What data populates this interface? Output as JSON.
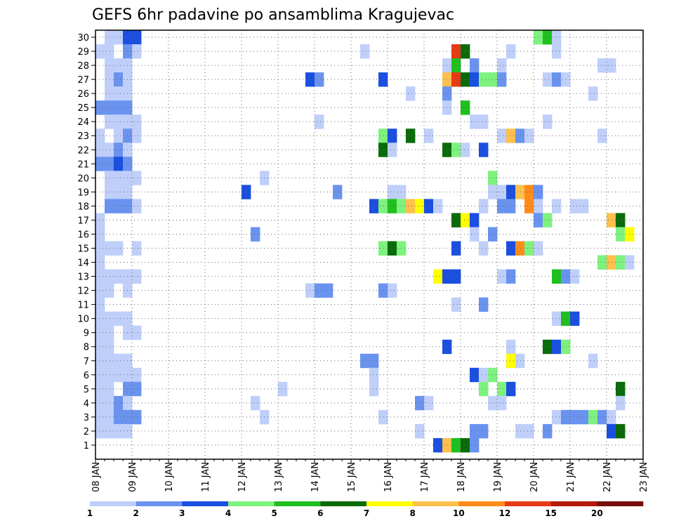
{
  "chart_data": {
    "type": "heatmap",
    "title": "GEFS 6hr padavine po ansamblima Kragujevac",
    "xlabel": "",
    "ylabel": "",
    "x_ticks": [
      "08 JAN",
      "09 JAN",
      "10 JAN",
      "11 JAN",
      "12 JAN",
      "13 JAN",
      "14 JAN",
      "15 JAN",
      "16 JAN",
      "17 JAN",
      "18 JAN",
      "19 JAN",
      "20 JAN",
      "21 JAN",
      "22 JAN",
      "23 JAN"
    ],
    "y_ticks": [
      1,
      2,
      3,
      4,
      5,
      6,
      7,
      8,
      9,
      10,
      11,
      12,
      13,
      14,
      15,
      16,
      17,
      18,
      19,
      20,
      21,
      22,
      23,
      24,
      25,
      26,
      27,
      28,
      29,
      30
    ],
    "time_step_hours": 6,
    "grid": true,
    "colorbar": {
      "position": "bottom",
      "levels": [
        "1",
        "2",
        "3",
        "4",
        "5",
        "6",
        "7",
        "8",
        "10",
        "12",
        "15",
        "20"
      ],
      "colors": [
        "#bfcffa",
        "#6a93ef",
        "#1a4fe0",
        "#7ef27e",
        "#1fbf1f",
        "#0a6b0a",
        "#ffff00",
        "#ffc04d",
        "#ff8c1a",
        "#e63b14",
        "#b31a0a",
        "#780c0c"
      ]
    },
    "cells": [
      [
        30,
        1,
        0
      ],
      [
        30,
        2,
        0
      ],
      [
        30,
        3,
        2
      ],
      [
        30,
        4,
        2
      ],
      [
        30,
        48,
        3
      ],
      [
        30,
        49,
        4
      ],
      [
        30,
        50,
        0
      ],
      [
        29,
        0,
        0
      ],
      [
        29,
        1,
        0
      ],
      [
        29,
        3,
        1
      ],
      [
        29,
        4,
        0
      ],
      [
        29,
        29,
        0
      ],
      [
        29,
        39,
        9
      ],
      [
        29,
        40,
        5
      ],
      [
        29,
        45,
        0
      ],
      [
        29,
        50,
        0
      ],
      [
        28,
        1,
        0
      ],
      [
        28,
        2,
        0
      ],
      [
        28,
        3,
        0
      ],
      [
        28,
        38,
        0
      ],
      [
        28,
        39,
        4
      ],
      [
        28,
        41,
        1
      ],
      [
        28,
        44,
        0
      ],
      [
        28,
        55,
        0
      ],
      [
        28,
        56,
        0
      ],
      [
        27,
        1,
        0
      ],
      [
        27,
        2,
        1
      ],
      [
        27,
        3,
        0
      ],
      [
        27,
        23,
        2
      ],
      [
        27,
        24,
        1
      ],
      [
        27,
        31,
        2
      ],
      [
        27,
        38,
        7
      ],
      [
        27,
        39,
        9
      ],
      [
        27,
        40,
        5
      ],
      [
        27,
        41,
        2
      ],
      [
        27,
        42,
        3
      ],
      [
        27,
        43,
        3
      ],
      [
        27,
        44,
        1
      ],
      [
        27,
        49,
        0
      ],
      [
        27,
        50,
        1
      ],
      [
        27,
        51,
        0
      ],
      [
        26,
        1,
        0
      ],
      [
        26,
        2,
        0
      ],
      [
        26,
        3,
        0
      ],
      [
        26,
        34,
        0
      ],
      [
        26,
        38,
        1
      ],
      [
        26,
        54,
        0
      ],
      [
        25,
        0,
        1
      ],
      [
        25,
        1,
        1
      ],
      [
        25,
        2,
        1
      ],
      [
        25,
        3,
        1
      ],
      [
        25,
        38,
        0
      ],
      [
        25,
        40,
        4
      ],
      [
        24,
        1,
        0
      ],
      [
        24,
        2,
        0
      ],
      [
        24,
        3,
        0
      ],
      [
        24,
        4,
        0
      ],
      [
        24,
        24,
        0
      ],
      [
        24,
        41,
        0
      ],
      [
        24,
        42,
        0
      ],
      [
        24,
        49,
        0
      ],
      [
        23,
        0,
        0
      ],
      [
        23,
        2,
        0
      ],
      [
        23,
        3,
        1
      ],
      [
        23,
        4,
        0
      ],
      [
        23,
        31,
        3
      ],
      [
        23,
        32,
        2
      ],
      [
        23,
        34,
        5
      ],
      [
        23,
        36,
        0
      ],
      [
        23,
        44,
        0
      ],
      [
        23,
        45,
        7
      ],
      [
        23,
        46,
        1
      ],
      [
        23,
        47,
        0
      ],
      [
        23,
        55,
        0
      ],
      [
        22,
        0,
        0
      ],
      [
        22,
        1,
        0
      ],
      [
        22,
        2,
        1
      ],
      [
        22,
        3,
        0
      ],
      [
        22,
        31,
        5
      ],
      [
        22,
        32,
        0
      ],
      [
        22,
        38,
        5
      ],
      [
        22,
        39,
        3
      ],
      [
        22,
        40,
        0
      ],
      [
        22,
        42,
        2
      ],
      [
        21,
        0,
        1
      ],
      [
        21,
        1,
        1
      ],
      [
        21,
        2,
        2
      ],
      [
        21,
        3,
        1
      ],
      [
        20,
        1,
        0
      ],
      [
        20,
        2,
        0
      ],
      [
        20,
        3,
        0
      ],
      [
        20,
        4,
        0
      ],
      [
        20,
        18,
        0
      ],
      [
        20,
        43,
        3
      ],
      [
        19,
        1,
        0
      ],
      [
        19,
        2,
        0
      ],
      [
        19,
        3,
        0
      ],
      [
        19,
        16,
        2
      ],
      [
        19,
        26,
        1
      ],
      [
        19,
        32,
        0
      ],
      [
        19,
        33,
        0
      ],
      [
        19,
        43,
        0
      ],
      [
        19,
        44,
        0
      ],
      [
        19,
        45,
        2
      ],
      [
        19,
        46,
        7
      ],
      [
        19,
        47,
        8
      ],
      [
        19,
        48,
        1
      ],
      [
        18,
        1,
        1
      ],
      [
        18,
        2,
        1
      ],
      [
        18,
        3,
        1
      ],
      [
        18,
        4,
        0
      ],
      [
        18,
        30,
        2
      ],
      [
        18,
        31,
        3
      ],
      [
        18,
        32,
        4
      ],
      [
        18,
        33,
        3
      ],
      [
        18,
        34,
        7
      ],
      [
        18,
        35,
        6
      ],
      [
        18,
        36,
        2
      ],
      [
        18,
        37,
        0
      ],
      [
        18,
        42,
        0
      ],
      [
        18,
        44,
        1
      ],
      [
        18,
        45,
        1
      ],
      [
        18,
        47,
        8
      ],
      [
        18,
        48,
        0
      ],
      [
        18,
        50,
        0
      ],
      [
        18,
        52,
        0
      ],
      [
        18,
        53,
        0
      ],
      [
        17,
        0,
        0
      ],
      [
        17,
        39,
        5
      ],
      [
        17,
        40,
        6
      ],
      [
        17,
        41,
        2
      ],
      [
        17,
        48,
        1
      ],
      [
        17,
        49,
        3
      ],
      [
        17,
        56,
        7
      ],
      [
        17,
        57,
        5
      ],
      [
        16,
        0,
        0
      ],
      [
        16,
        17,
        1
      ],
      [
        16,
        41,
        0
      ],
      [
        16,
        43,
        1
      ],
      [
        16,
        57,
        3
      ],
      [
        16,
        58,
        6
      ],
      [
        15,
        0,
        0
      ],
      [
        15,
        1,
        0
      ],
      [
        15,
        2,
        0
      ],
      [
        15,
        4,
        0
      ],
      [
        15,
        31,
        3
      ],
      [
        15,
        32,
        5
      ],
      [
        15,
        33,
        3
      ],
      [
        15,
        39,
        2
      ],
      [
        15,
        42,
        0
      ],
      [
        15,
        45,
        2
      ],
      [
        15,
        46,
        8
      ],
      [
        15,
        47,
        3
      ],
      [
        15,
        48,
        0
      ],
      [
        14,
        0,
        0
      ],
      [
        14,
        55,
        3
      ],
      [
        14,
        56,
        7
      ],
      [
        14,
        57,
        3
      ],
      [
        14,
        58,
        0
      ],
      [
        13,
        0,
        0
      ],
      [
        13,
        1,
        0
      ],
      [
        13,
        2,
        0
      ],
      [
        13,
        3,
        0
      ],
      [
        13,
        4,
        0
      ],
      [
        13,
        37,
        6
      ],
      [
        13,
        38,
        2
      ],
      [
        13,
        39,
        2
      ],
      [
        13,
        44,
        0
      ],
      [
        13,
        45,
        1
      ],
      [
        13,
        50,
        4
      ],
      [
        13,
        51,
        1
      ],
      [
        13,
        52,
        0
      ],
      [
        12,
        0,
        0
      ],
      [
        12,
        1,
        0
      ],
      [
        12,
        3,
        0
      ],
      [
        12,
        23,
        0
      ],
      [
        12,
        24,
        1
      ],
      [
        12,
        25,
        1
      ],
      [
        12,
        31,
        1
      ],
      [
        12,
        32,
        0
      ],
      [
        11,
        0,
        0
      ],
      [
        11,
        39,
        0
      ],
      [
        11,
        42,
        1
      ],
      [
        10,
        0,
        0
      ],
      [
        10,
        1,
        0
      ],
      [
        10,
        2,
        0
      ],
      [
        10,
        3,
        0
      ],
      [
        10,
        50,
        0
      ],
      [
        10,
        51,
        4
      ],
      [
        10,
        52,
        2
      ],
      [
        9,
        0,
        0
      ],
      [
        9,
        1,
        0
      ],
      [
        9,
        3,
        0
      ],
      [
        9,
        4,
        0
      ],
      [
        8,
        0,
        0
      ],
      [
        8,
        1,
        0
      ],
      [
        8,
        38,
        2
      ],
      [
        8,
        45,
        0
      ],
      [
        8,
        49,
        5
      ],
      [
        8,
        50,
        2
      ],
      [
        8,
        51,
        3
      ],
      [
        7,
        0,
        0
      ],
      [
        7,
        1,
        0
      ],
      [
        7,
        2,
        0
      ],
      [
        7,
        3,
        0
      ],
      [
        7,
        29,
        1
      ],
      [
        7,
        30,
        1
      ],
      [
        7,
        45,
        6
      ],
      [
        7,
        46,
        0
      ],
      [
        7,
        54,
        0
      ],
      [
        6,
        0,
        0
      ],
      [
        6,
        1,
        0
      ],
      [
        6,
        2,
        0
      ],
      [
        6,
        3,
        0
      ],
      [
        6,
        4,
        0
      ],
      [
        6,
        30,
        0
      ],
      [
        6,
        41,
        2
      ],
      [
        6,
        42,
        0
      ],
      [
        6,
        43,
        3
      ],
      [
        5,
        0,
        0
      ],
      [
        5,
        1,
        0
      ],
      [
        5,
        3,
        1
      ],
      [
        5,
        4,
        1
      ],
      [
        5,
        20,
        0
      ],
      [
        5,
        30,
        0
      ],
      [
        5,
        42,
        3
      ],
      [
        5,
        44,
        3
      ],
      [
        5,
        45,
        2
      ],
      [
        5,
        57,
        5
      ],
      [
        4,
        0,
        0
      ],
      [
        4,
        1,
        0
      ],
      [
        4,
        2,
        1
      ],
      [
        4,
        3,
        0
      ],
      [
        4,
        17,
        0
      ],
      [
        4,
        35,
        1
      ],
      [
        4,
        36,
        0
      ],
      [
        4,
        43,
        0
      ],
      [
        4,
        44,
        0
      ],
      [
        4,
        57,
        0
      ],
      [
        3,
        0,
        0
      ],
      [
        3,
        1,
        0
      ],
      [
        3,
        2,
        1
      ],
      [
        3,
        3,
        1
      ],
      [
        3,
        4,
        1
      ],
      [
        3,
        18,
        0
      ],
      [
        3,
        31,
        0
      ],
      [
        3,
        50,
        0
      ],
      [
        3,
        51,
        1
      ],
      [
        3,
        52,
        1
      ],
      [
        3,
        53,
        1
      ],
      [
        3,
        54,
        3
      ],
      [
        3,
        55,
        1
      ],
      [
        3,
        56,
        0
      ],
      [
        2,
        0,
        0
      ],
      [
        2,
        1,
        0
      ],
      [
        2,
        2,
        0
      ],
      [
        2,
        3,
        0
      ],
      [
        2,
        35,
        0
      ],
      [
        2,
        41,
        1
      ],
      [
        2,
        42,
        1
      ],
      [
        2,
        46,
        0
      ],
      [
        2,
        47,
        0
      ],
      [
        2,
        49,
        1
      ],
      [
        2,
        56,
        2
      ],
      [
        2,
        57,
        5
      ],
      [
        1,
        37,
        2
      ],
      [
        1,
        38,
        7
      ],
      [
        1,
        39,
        4
      ],
      [
        1,
        40,
        5
      ],
      [
        1,
        41,
        1
      ]
    ]
  }
}
